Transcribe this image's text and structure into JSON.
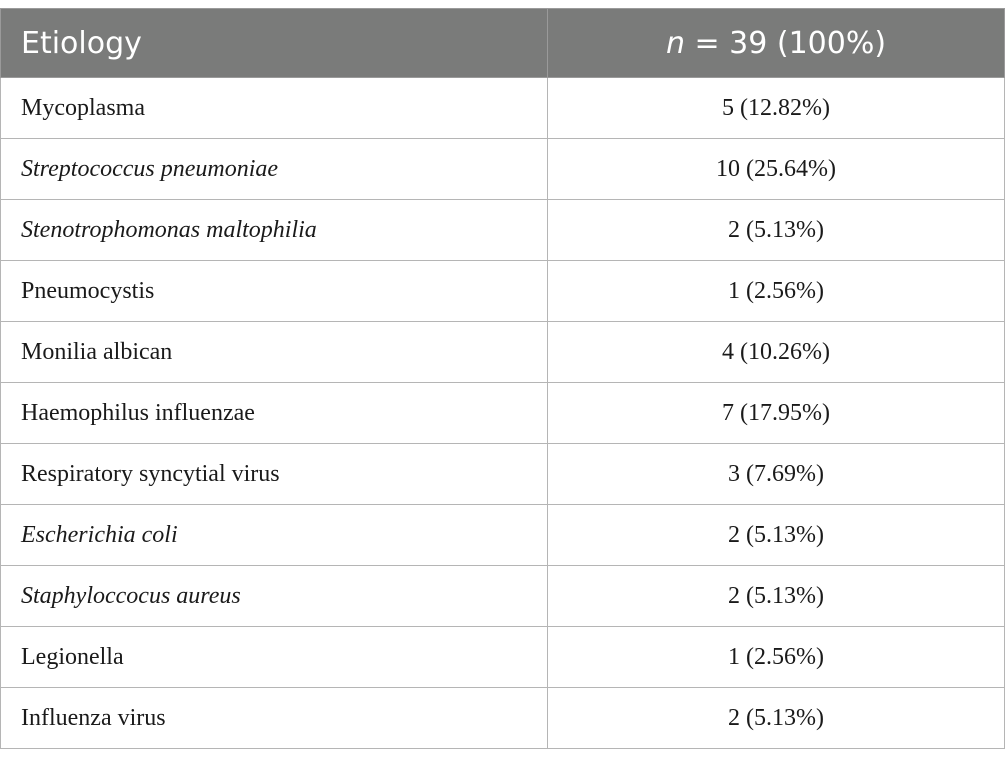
{
  "table": {
    "header": {
      "col1": "Etiology",
      "col2_italic": "n",
      "col2_rest": " = 39 (100%)"
    },
    "rows": [
      {
        "etiology": "Mycoplasma",
        "count": "5 (12.82%)",
        "italic": false
      },
      {
        "etiology": "Streptococcus pneumoniae",
        "count": "10 (25.64%)",
        "italic": true
      },
      {
        "etiology": "Stenotrophomonas maltophilia",
        "count": "2 (5.13%)",
        "italic": true
      },
      {
        "etiology": "Pneumocystis",
        "count": "1 (2.56%)",
        "italic": false
      },
      {
        "etiology": "Monilia albican",
        "count": "4 (10.26%)",
        "italic": false
      },
      {
        "etiology": "Haemophilus influenzae",
        "count": "7 (17.95%)",
        "italic": false
      },
      {
        "etiology": "Respiratory syncytial virus",
        "count": "3 (7.69%)",
        "italic": false
      },
      {
        "etiology": "Escherichia coli",
        "count": "2 (5.13%)",
        "italic": true
      },
      {
        "etiology": "Staphyloccocus aureus",
        "count": "2 (5.13%)",
        "italic": true
      },
      {
        "etiology": "Legionella",
        "count": "1 (2.56%)",
        "italic": false
      },
      {
        "etiology": "Influenza virus",
        "count": "2 (5.13%)",
        "italic": false
      }
    ]
  }
}
